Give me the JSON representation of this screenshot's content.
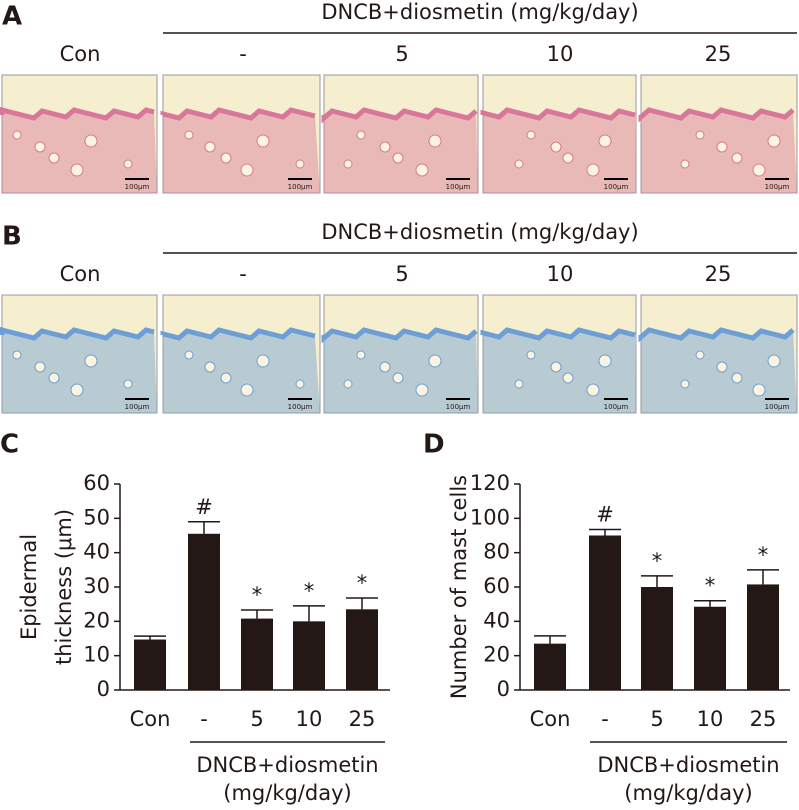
{
  "image_panels": [
    {
      "label": "A",
      "group_title": "DNCB+diosmetin (mg/kg/day)",
      "columns": [
        "Con",
        "-",
        "5",
        "10",
        "25"
      ],
      "scale_bar": "100μm",
      "stain": "#d9779a"
    },
    {
      "label": "B",
      "group_title": "DNCB+diosmetin (mg/kg/day)",
      "columns": [
        "Con",
        "-",
        "5",
        "10",
        "25"
      ],
      "scale_bar": "100μm",
      "stain": "#6d9fd6"
    }
  ],
  "chart_data": [
    {
      "type": "bar",
      "panel_label": "C",
      "ylabel_lines": [
        "Epidermal",
        "thickness (μm)"
      ],
      "categories": [
        "Con",
        "-",
        "5",
        "10",
        "25"
      ],
      "values": [
        14.7,
        45.5,
        20.8,
        20,
        23.5
      ],
      "errors": [
        1,
        3.5,
        2.5,
        4.5,
        3.3
      ],
      "annotations": [
        null,
        "#",
        "*",
        "*",
        "*"
      ],
      "group_label_lines": [
        "DNCB+diosmetin",
        "(mg/kg/day)"
      ],
      "color": "#231815",
      "ylim": [
        0,
        60
      ],
      "yticks": [
        0,
        10,
        20,
        30,
        40,
        50,
        60
      ]
    },
    {
      "type": "bar",
      "panel_label": "D",
      "ylabel_lines": [
        "Number of mast cells"
      ],
      "categories": [
        "Con",
        "-",
        "5",
        "10",
        "25"
      ],
      "values": [
        27,
        90,
        60,
        48.5,
        61.5
      ],
      "errors": [
        4.5,
        3.5,
        6.5,
        3.5,
        8.5
      ],
      "annotations": [
        null,
        "#",
        "*",
        "*",
        "*"
      ],
      "group_label_lines": [
        "DNCB+diosmetin",
        "(mg/kg/day)"
      ],
      "color": "#231815",
      "ylim": [
        0,
        120
      ],
      "yticks": [
        0,
        20,
        40,
        60,
        80,
        100,
        120
      ]
    }
  ]
}
